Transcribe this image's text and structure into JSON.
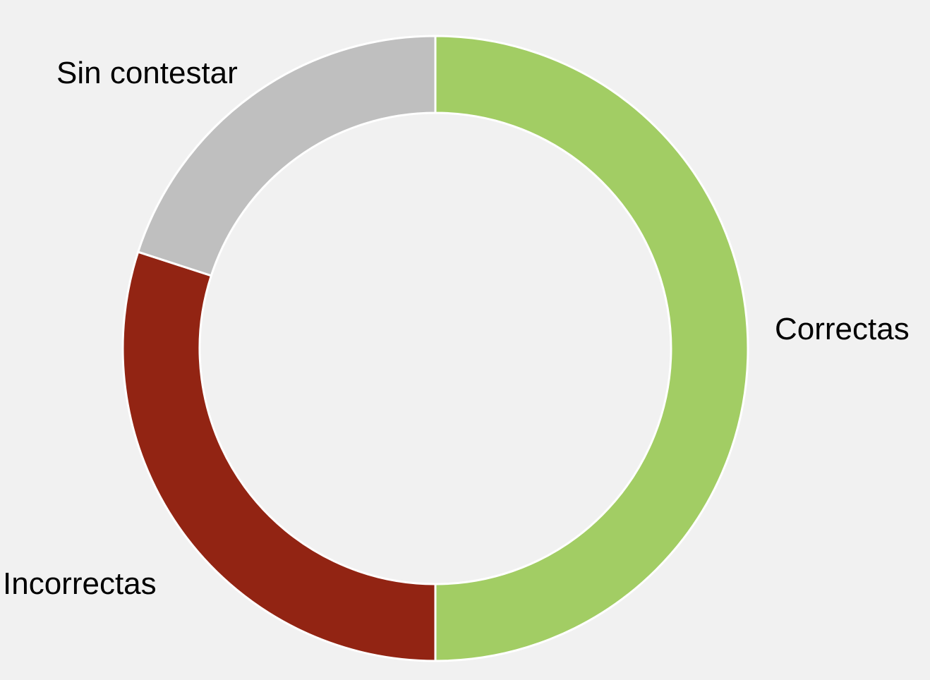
{
  "chart_data": {
    "type": "pie",
    "variant": "donut",
    "title": "",
    "categories": [
      "Correctas",
      "Incorrectas",
      "Sin contestar"
    ],
    "values": [
      50,
      30,
      20
    ],
    "colors": [
      "#a2cd64",
      "#922413",
      "#bfbfbf"
    ],
    "label_placement": "outside",
    "legend": "none",
    "grid": false
  }
}
